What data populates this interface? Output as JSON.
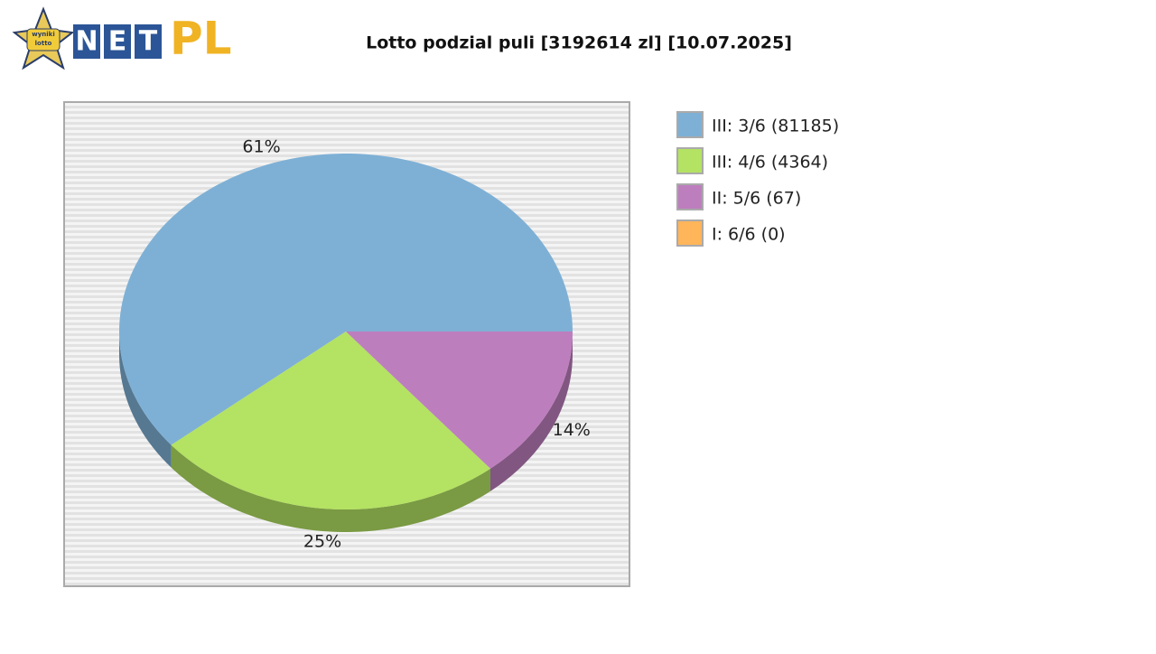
{
  "logo": {
    "badge": [
      "wyniki",
      "lotto"
    ],
    "letters": [
      "N",
      "E",
      "T"
    ],
    "suffix": "PL"
  },
  "chart_data": {
    "type": "pie",
    "title": "Lotto podzial puli [3192614 zl] [10.07.2025]",
    "categories": [
      "III: 3/6 (81185)",
      "III: 4/6 (4364)",
      "II: 5/6 (67)",
      "I: 6/6 (0)"
    ],
    "values": [
      61,
      25,
      14,
      0
    ],
    "value_labels": [
      "61%",
      "25%",
      "14%",
      null
    ],
    "colors": [
      "#7eb0d5",
      "#b4e262",
      "#bd7ebe",
      "#ffb55a"
    ]
  }
}
